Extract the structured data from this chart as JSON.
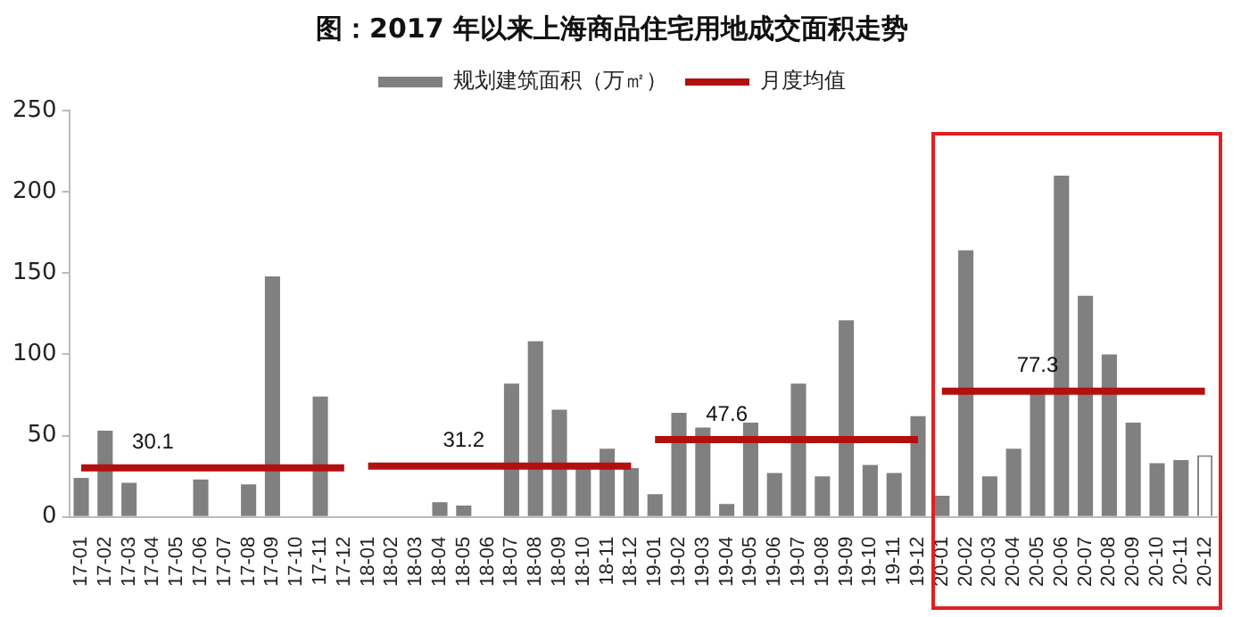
{
  "chart_data": {
    "type": "bar",
    "title": "图：2017 年以来上海商品住宅用地成交面积走势",
    "categories": [
      "17-01",
      "17-02",
      "17-03",
      "17-04",
      "17-05",
      "17-06",
      "17-07",
      "17-08",
      "17-09",
      "17-10",
      "17-11",
      "17-12",
      "18-01",
      "18-02",
      "18-03",
      "18-04",
      "18-05",
      "18-06",
      "18-07",
      "18-08",
      "18-09",
      "18-10",
      "18-11",
      "18-12",
      "19-01",
      "19-02",
      "19-03",
      "19-04",
      "19-05",
      "19-06",
      "19-07",
      "19-08",
      "19-09",
      "19-10",
      "19-11",
      "19-12",
      "20-01",
      "20-02",
      "20-03",
      "20-04",
      "20-05",
      "20-06",
      "20-07",
      "20-08",
      "20-09",
      "20-10",
      "20-11",
      "20-12"
    ],
    "series": [
      {
        "name": "规划建筑面积（万㎡）",
        "type": "bar",
        "color": "#808080",
        "colors": [
          "#808080",
          "#808080",
          "#808080",
          "#808080",
          "#808080",
          "#808080",
          "#808080",
          "#808080",
          "#808080",
          "#808080",
          "#808080",
          "#808080",
          "#808080",
          "#808080",
          "#808080",
          "#808080",
          "#808080",
          "#808080",
          "#808080",
          "#808080",
          "#808080",
          "#808080",
          "#808080",
          "#808080",
          "#808080",
          "#808080",
          "#808080",
          "#808080",
          "#808080",
          "#808080",
          "#808080",
          "#808080",
          "#808080",
          "#808080",
          "#808080",
          "#808080",
          "#808080",
          "#808080",
          "#808080",
          "#808080",
          "#808080",
          "#808080",
          "#808080",
          "#808080",
          "#808080",
          "#808080",
          "#808080",
          "#ffffff"
        ],
        "values": [
          24,
          53,
          21,
          0,
          0,
          23,
          0,
          20,
          148,
          0,
          74,
          0,
          0,
          0,
          0,
          9,
          7,
          0,
          82,
          108,
          66,
          31,
          42,
          30,
          14,
          64,
          55,
          8,
          58,
          27,
          82,
          25,
          121,
          32,
          27,
          62,
          13,
          164,
          25,
          42,
          76,
          210,
          136,
          100,
          58,
          33,
          35,
          38
        ]
      },
      {
        "name": "月度均值",
        "type": "line",
        "color": "#b40f0f",
        "values": [
          30.1,
          30.1,
          30.1,
          30.1,
          30.1,
          30.1,
          30.1,
          30.1,
          30.1,
          30.1,
          30.1,
          30.1,
          null,
          null,
          null,
          null,
          null,
          null,
          null,
          null,
          null,
          null,
          null,
          null,
          null,
          null,
          null,
          null,
          null,
          null,
          null,
          null,
          null,
          null,
          null,
          null,
          null,
          null,
          null,
          null,
          null,
          null,
          null,
          null,
          null,
          null,
          null,
          null
        ]
      },
      {
        "type": "line",
        "color": "#b40f0f",
        "values": [
          null,
          null,
          null,
          null,
          null,
          null,
          null,
          null,
          null,
          null,
          null,
          null,
          31.2,
          31.2,
          31.2,
          31.2,
          31.2,
          31.2,
          31.2,
          31.2,
          31.2,
          31.2,
          31.2,
          31.2,
          null,
          null,
          null,
          null,
          null,
          null,
          null,
          null,
          null,
          null,
          null,
          null,
          null,
          null,
          null,
          null,
          null,
          null,
          null,
          null,
          null,
          null,
          null,
          null
        ]
      },
      {
        "type": "line",
        "color": "#b40f0f",
        "values": [
          null,
          null,
          null,
          null,
          null,
          null,
          null,
          null,
          null,
          null,
          null,
          null,
          null,
          null,
          null,
          null,
          null,
          null,
          null,
          null,
          null,
          null,
          null,
          null,
          47.6,
          47.6,
          47.6,
          47.6,
          47.6,
          47.6,
          47.6,
          47.6,
          47.6,
          47.6,
          47.6,
          47.6,
          null,
          null,
          null,
          null,
          null,
          null,
          null,
          null,
          null,
          null,
          null,
          null
        ]
      },
      {
        "type": "line",
        "color": "#b40f0f",
        "values": [
          null,
          null,
          null,
          null,
          null,
          null,
          null,
          null,
          null,
          null,
          null,
          null,
          null,
          null,
          null,
          null,
          null,
          null,
          null,
          null,
          null,
          null,
          null,
          null,
          null,
          null,
          null,
          null,
          null,
          null,
          null,
          null,
          null,
          null,
          null,
          null,
          77.3,
          77.3,
          77.3,
          77.3,
          77.3,
          77.3,
          77.3,
          77.3,
          77.3,
          77.3,
          77.3,
          77.3
        ]
      }
    ],
    "annotations": [
      {
        "text": "30.1",
        "x": "17-04",
        "y": 30.1
      },
      {
        "text": "31.2",
        "x": "18-05",
        "y": 31.2
      },
      {
        "text": "47.6",
        "x": "19-04",
        "y": 47.6
      },
      {
        "text": "77.3",
        "x": "20-05",
        "y": 77.3
      }
    ],
    "ylim": [
      0,
      250
    ],
    "yticks": [
      0,
      50,
      100,
      150,
      200,
      250
    ],
    "grid": false,
    "legend": "top",
    "marker": "none"
  }
}
